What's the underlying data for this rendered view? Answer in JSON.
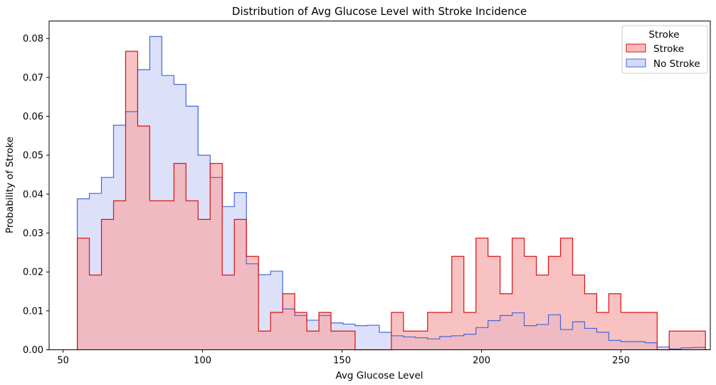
{
  "chart_data": {
    "type": "histogram-step",
    "title": "Distribution of Avg Glucose Level with Stroke Incidence",
    "xlabel": "Avg Glucose Level",
    "ylabel": "Probability of Stroke",
    "xlim": [
      45,
      282
    ],
    "ylim": [
      0,
      0.0845
    ],
    "x_ticks": [
      50,
      100,
      150,
      200,
      250
    ],
    "y_ticks": [
      0.0,
      0.01,
      0.02,
      0.03,
      0.04,
      0.05,
      0.06,
      0.07,
      0.08
    ],
    "y_tick_labels": [
      "0.00",
      "0.01",
      "0.02",
      "0.03",
      "0.04",
      "0.05",
      "0.06",
      "0.07",
      "0.08"
    ],
    "grid": false,
    "legend": {
      "title": "Stroke",
      "position": "top-right",
      "entries": [
        "Stroke",
        "No Stroke"
      ]
    },
    "bin_start": 55.1,
    "bin_width": 4.33,
    "series": [
      {
        "name": "No Stroke",
        "stroke": "#4466dd",
        "fill": "#cfd6f6",
        "values": [
          0.0388,
          0.0402,
          0.0443,
          0.0577,
          0.0612,
          0.072,
          0.0805,
          0.0705,
          0.0682,
          0.0626,
          0.05,
          0.0443,
          0.0368,
          0.0404,
          0.0221,
          0.0193,
          0.0202,
          0.0105,
          0.0088,
          0.0076,
          0.0088,
          0.0069,
          0.0066,
          0.0062,
          0.0063,
          0.0045,
          0.0036,
          0.0033,
          0.0031,
          0.0028,
          0.0034,
          0.0036,
          0.004,
          0.0057,
          0.0075,
          0.0088,
          0.0095,
          0.0062,
          0.0065,
          0.009,
          0.0052,
          0.0072,
          0.0055,
          0.0045,
          0.0024,
          0.0021,
          0.0021,
          0.0018,
          0.0007,
          0.0002,
          0.0005,
          0.0006
        ]
      },
      {
        "name": "Stroke",
        "stroke": "#dd1111",
        "fill": "#f7aaaa",
        "values": [
          0.0287,
          0.0192,
          0.0335,
          0.0383,
          0.0767,
          0.0575,
          0.0383,
          0.0383,
          0.0479,
          0.0383,
          0.0335,
          0.0479,
          0.0192,
          0.0335,
          0.024,
          0.0048,
          0.0096,
          0.0144,
          0.0096,
          0.0048,
          0.0096,
          0.0048,
          0.0048,
          0.0,
          0.0,
          0.0,
          0.0096,
          0.0048,
          0.0048,
          0.0096,
          0.0096,
          0.024,
          0.0096,
          0.0287,
          0.024,
          0.0144,
          0.0287,
          0.024,
          0.0192,
          0.024,
          0.0287,
          0.0192,
          0.0144,
          0.0096,
          0.0144,
          0.0096,
          0.0096,
          0.0096,
          0.0,
          0.0048,
          0.0048,
          0.0048
        ]
      }
    ]
  }
}
